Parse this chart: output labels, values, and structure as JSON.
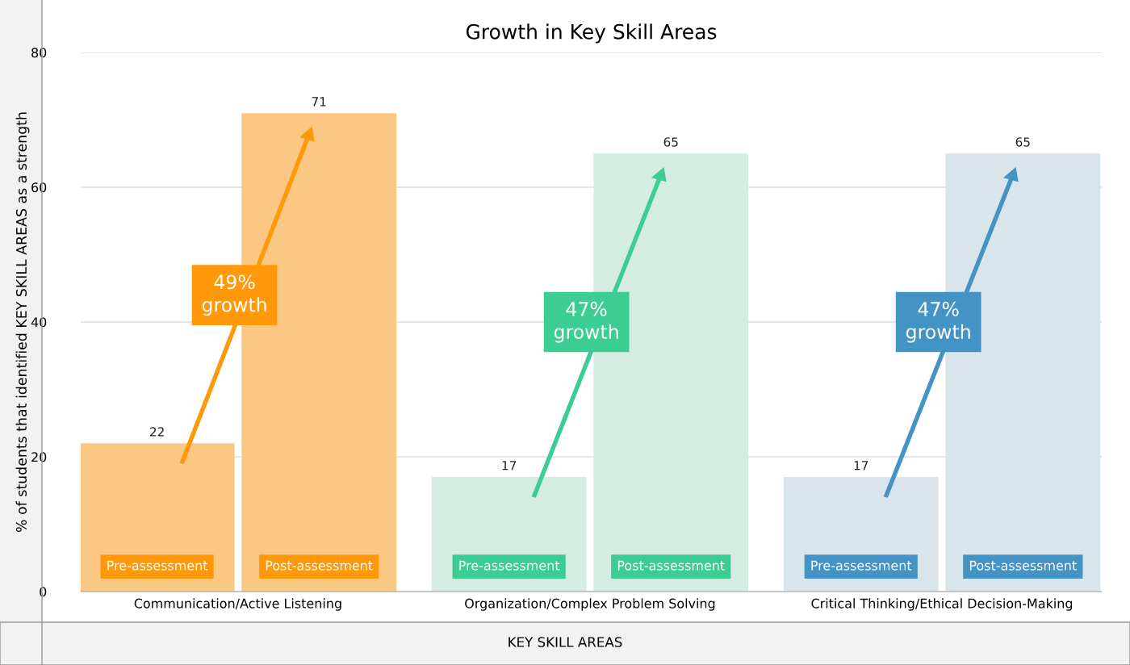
{
  "chart_data": {
    "type": "bar",
    "title": "Growth in Key Skill Areas",
    "xlabel": "KEY SKILL AREAS",
    "ylabel": "% of students that identified KEY SKILL AREAS as a strength",
    "categories": [
      "Communication/Active Listening",
      "Organization/Complex Problem Solving",
      "Critical Thinking/Ethical Decision-Making"
    ],
    "series": [
      {
        "name": "Pre-assessment",
        "colors": [
          "#fac882",
          "#d5ece3",
          "#d9e4eb"
        ],
        "values": [
          22,
          17,
          17
        ]
      },
      {
        "name": "Post-assessment",
        "colors": [
          "#fac882",
          "#d5ece3",
          "#d9e4eb"
        ],
        "values": [
          71,
          65,
          65
        ]
      }
    ],
    "annotations": [
      {
        "text": "49%\ngrowth",
        "x": "Communication/Active Listening",
        "y": 44
      },
      {
        "text": "47%\ngrowth",
        "x": "Organization/Complex Problem Solving",
        "y": 40
      },
      {
        "text": "47%\ngrowth",
        "x": "Critical Thinking/Ethical Decision-Making",
        "y": 40
      }
    ],
    "ylim": [
      0,
      80
    ],
    "yticks": [
      0,
      20,
      40,
      60,
      80
    ],
    "grid": "y",
    "data_labels": true
  }
}
